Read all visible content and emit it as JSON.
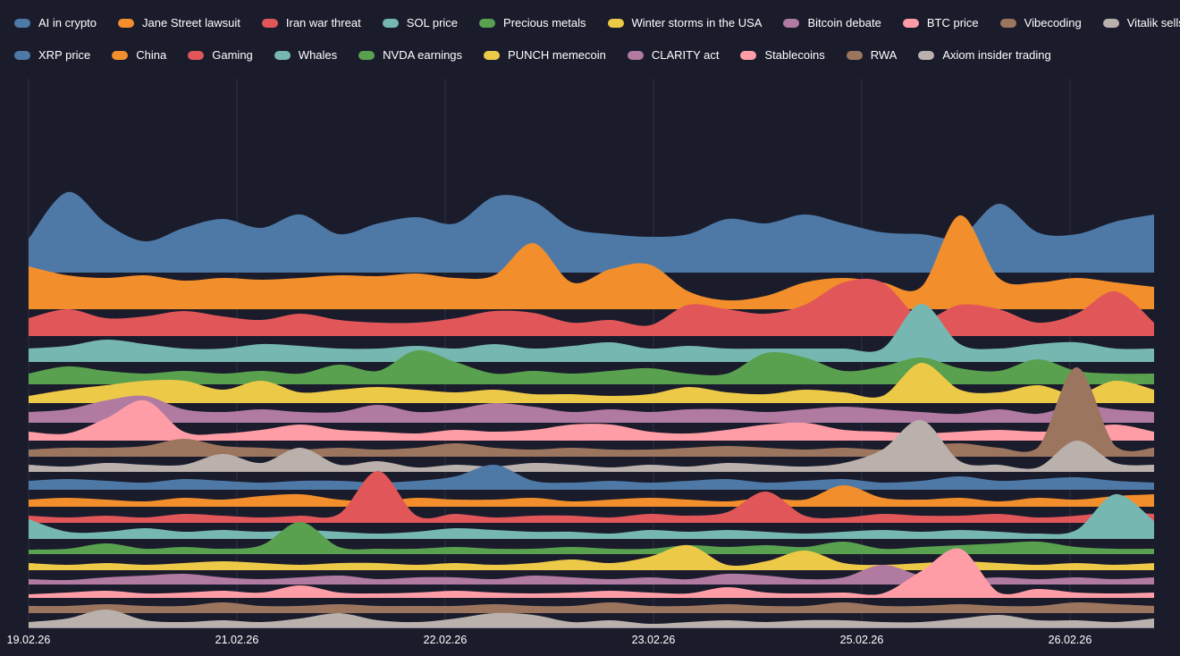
{
  "chart_data": {
    "type": "area",
    "subtype": "ridgeline",
    "title": "",
    "xlabel": "",
    "ylabel": "",
    "x_tick_labels": [
      "19.02.26",
      "21.02.26",
      "22.02.26",
      "23.02.26",
      "25.02.26",
      "26.02.26"
    ],
    "grid": "vertical",
    "legend_position": "top",
    "series": [
      {
        "name": "AI in crypto",
        "color": "#4e79a7",
        "values": [
          38,
          90,
          55,
          35,
          50,
          60,
          50,
          65,
          43,
          55,
          62,
          55,
          85,
          80,
          50,
          43,
          40,
          43,
          60,
          55,
          65,
          55,
          45,
          43,
          40,
          77,
          45,
          43,
          57,
          65
        ]
      },
      {
        "name": "Jane Street lawsuit",
        "color": "#f28e2b",
        "values": [
          48,
          38,
          35,
          38,
          32,
          35,
          33,
          35,
          38,
          37,
          40,
          35,
          38,
          74,
          30,
          45,
          50,
          20,
          10,
          15,
          30,
          35,
          30,
          25,
          105,
          35,
          30,
          35,
          30,
          25
        ]
      },
      {
        "name": "Iran war threat",
        "color": "#e15759",
        "values": [
          20,
          30,
          20,
          22,
          28,
          22,
          18,
          25,
          18,
          15,
          15,
          20,
          28,
          26,
          15,
          18,
          12,
          35,
          30,
          25,
          35,
          60,
          60,
          20,
          35,
          30,
          15,
          25,
          50,
          15
        ]
      },
      {
        "name": "SOL price",
        "color": "#76b7b2",
        "values": [
          15,
          18,
          25,
          20,
          15,
          15,
          20,
          18,
          15,
          15,
          18,
          15,
          20,
          15,
          18,
          22,
          15,
          18,
          15,
          15,
          15,
          15,
          15,
          65,
          20,
          15,
          20,
          22,
          15,
          15
        ]
      },
      {
        "name": "Precious metals",
        "color": "#59a14f",
        "values": [
          12,
          20,
          15,
          12,
          15,
          12,
          15,
          12,
          22,
          15,
          38,
          25,
          12,
          15,
          12,
          15,
          18,
          12,
          12,
          35,
          30,
          15,
          20,
          30,
          18,
          15,
          28,
          15,
          12,
          12
        ]
      },
      {
        "name": "Winter storms in the USA",
        "color": "#edc948",
        "values": [
          8,
          15,
          20,
          25,
          25,
          15,
          25,
          12,
          15,
          18,
          15,
          12,
          15,
          10,
          10,
          8,
          10,
          18,
          12,
          10,
          15,
          12,
          8,
          45,
          15,
          12,
          20,
          10,
          25,
          15
        ]
      },
      {
        "name": "Bitcoin debate",
        "color": "#b07aa1",
        "values": [
          12,
          15,
          25,
          30,
          15,
          12,
          15,
          12,
          12,
          20,
          12,
          15,
          22,
          18,
          12,
          15,
          12,
          15,
          15,
          12,
          15,
          18,
          15,
          12,
          10,
          15,
          10,
          20,
          15,
          12
        ]
      },
      {
        "name": "BTC price",
        "color": "#ff9da7",
        "values": [
          10,
          8,
          25,
          45,
          10,
          8,
          12,
          18,
          12,
          10,
          8,
          12,
          10,
          12,
          18,
          18,
          10,
          8,
          12,
          18,
          20,
          12,
          10,
          8,
          10,
          12,
          10,
          12,
          18,
          10
        ]
      },
      {
        "name": "Vibecoding",
        "color": "#9c755f",
        "values": [
          8,
          10,
          10,
          12,
          20,
          12,
          10,
          8,
          10,
          8,
          10,
          15,
          10,
          8,
          10,
          8,
          8,
          10,
          12,
          10,
          8,
          10,
          8,
          12,
          15,
          10,
          10,
          100,
          12,
          10
        ]
      },
      {
        "name": "Vitalik sells ETH",
        "color": "#bab0ac",
        "values": [
          8,
          6,
          10,
          8,
          8,
          20,
          10,
          27,
          8,
          12,
          5,
          8,
          6,
          10,
          8,
          5,
          8,
          6,
          10,
          8,
          6,
          10,
          25,
          58,
          12,
          8,
          5,
          35,
          10,
          8
        ]
      },
      {
        "name": "XRP price",
        "color": "#4e79a7",
        "values": [
          10,
          12,
          10,
          8,
          12,
          10,
          8,
          10,
          10,
          8,
          10,
          15,
          28,
          10,
          8,
          10,
          8,
          10,
          12,
          8,
          10,
          12,
          8,
          10,
          15,
          10,
          12,
          14,
          10,
          8
        ]
      },
      {
        "name": "China",
        "color": "#f28e2b",
        "values": [
          8,
          10,
          8,
          6,
          10,
          8,
          12,
          14,
          8,
          6,
          10,
          8,
          8,
          10,
          6,
          8,
          10,
          8,
          6,
          10,
          8,
          24,
          10,
          8,
          10,
          6,
          10,
          8,
          12,
          14
        ]
      },
      {
        "name": "Gaming",
        "color": "#e15759",
        "values": [
          8,
          6,
          8,
          6,
          10,
          8,
          6,
          8,
          10,
          58,
          8,
          10,
          6,
          8,
          8,
          6,
          10,
          8,
          12,
          35,
          8,
          6,
          10,
          8,
          8,
          10,
          6,
          8,
          12,
          10
        ]
      },
      {
        "name": "Whales",
        "color": "#76b7b2",
        "values": [
          22,
          8,
          8,
          12,
          8,
          10,
          8,
          10,
          8,
          6,
          8,
          12,
          10,
          8,
          8,
          6,
          10,
          8,
          10,
          8,
          6,
          8,
          10,
          8,
          10,
          8,
          6,
          10,
          50,
          20
        ]
      },
      {
        "name": "NVDA earnings",
        "color": "#59a14f",
        "values": [
          5,
          6,
          12,
          6,
          8,
          6,
          10,
          36,
          8,
          6,
          6,
          8,
          6,
          6,
          8,
          6,
          6,
          10,
          8,
          10,
          8,
          14,
          6,
          8,
          10,
          12,
          14,
          8,
          6,
          6
        ]
      },
      {
        "name": "PUNCH memecoin",
        "color": "#edc948",
        "values": [
          8,
          6,
          8,
          6,
          8,
          10,
          8,
          6,
          8,
          8,
          6,
          8,
          6,
          8,
          12,
          8,
          15,
          28,
          6,
          10,
          22,
          8,
          6,
          8,
          10,
          8,
          6,
          8,
          6,
          8
        ]
      },
      {
        "name": "CLARITY act",
        "color": "#b07aa1",
        "values": [
          6,
          5,
          8,
          10,
          12,
          8,
          6,
          8,
          10,
          6,
          8,
          8,
          6,
          10,
          8,
          6,
          8,
          6,
          12,
          10,
          6,
          8,
          22,
          10,
          6,
          8,
          6,
          8,
          6,
          8
        ]
      },
      {
        "name": "Stablecoins",
        "color": "#ff9da7",
        "values": [
          4,
          6,
          8,
          5,
          6,
          8,
          6,
          14,
          6,
          5,
          6,
          8,
          6,
          5,
          6,
          8,
          6,
          5,
          12,
          6,
          5,
          6,
          5,
          30,
          55,
          6,
          10,
          6,
          5,
          6
        ]
      },
      {
        "name": "RWA",
        "color": "#9c755f",
        "values": [
          8,
          8,
          10,
          8,
          8,
          12,
          8,
          8,
          10,
          8,
          8,
          8,
          10,
          8,
          8,
          12,
          8,
          8,
          10,
          8,
          8,
          12,
          8,
          8,
          10,
          8,
          8,
          12,
          10,
          8
        ]
      },
      {
        "name": "Axiom insider trading",
        "color": "#bab0ac",
        "values": [
          6,
          10,
          20,
          8,
          6,
          8,
          6,
          10,
          16,
          8,
          6,
          10,
          16,
          14,
          6,
          8,
          4,
          6,
          8,
          6,
          8,
          8,
          6,
          6,
          10,
          14,
          8,
          8,
          6,
          10
        ]
      }
    ]
  }
}
